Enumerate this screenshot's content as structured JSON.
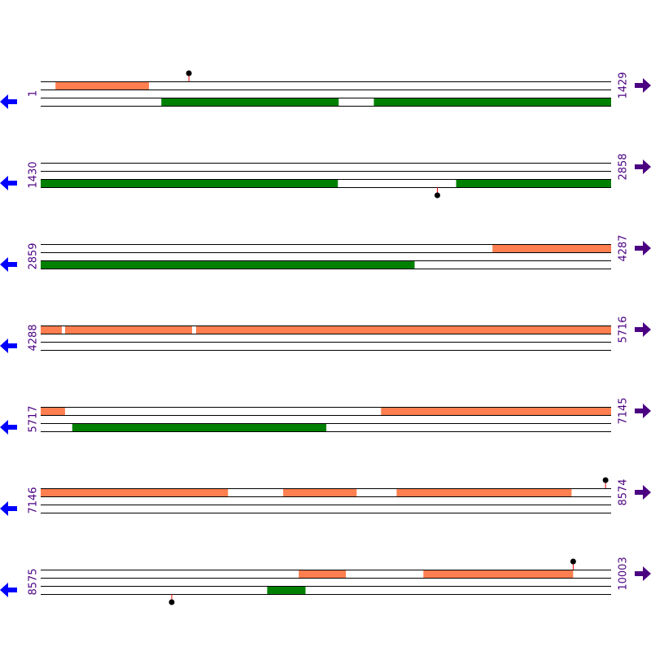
{
  "colors": {
    "top": "#ff7f50",
    "bottom": "#008000"
  },
  "rows": [
    {
      "start": 1,
      "end": 1429,
      "features": [
        {
          "track": "top",
          "start": 38,
          "end": 272
        },
        {
          "track": "bottom",
          "start": 303,
          "end": 747
        },
        {
          "track": "bottom",
          "start": 835,
          "end": 1429
        }
      ],
      "markers": [
        {
          "position": 372,
          "side": "up"
        }
      ]
    },
    {
      "start": 1430,
      "end": 2858,
      "features": [
        {
          "track": "bottom",
          "start": 1430,
          "end": 2174
        },
        {
          "track": "bottom",
          "start": 2470,
          "end": 2858
        }
      ],
      "markers": [
        {
          "position": 2423,
          "side": "down"
        }
      ]
    },
    {
      "start": 2859,
      "end": 4287,
      "features": [
        {
          "track": "top",
          "start": 3990,
          "end": 4287
        },
        {
          "track": "bottom",
          "start": 2859,
          "end": 3795
        }
      ],
      "markers": []
    },
    {
      "start": 4288,
      "end": 5716,
      "features": [
        {
          "track": "top",
          "start": 4288,
          "end": 4341
        },
        {
          "track": "top",
          "start": 4349,
          "end": 4667
        },
        {
          "track": "top",
          "start": 4677,
          "end": 5716
        }
      ],
      "markers": []
    },
    {
      "start": 5717,
      "end": 7145,
      "features": [
        {
          "track": "top",
          "start": 5717,
          "end": 5778
        },
        {
          "track": "top",
          "start": 6569,
          "end": 7145
        },
        {
          "track": "bottom",
          "start": 5796,
          "end": 6432
        }
      ],
      "markers": []
    },
    {
      "start": 7146,
      "end": 8574,
      "features": [
        {
          "track": "top",
          "start": 7146,
          "end": 7615
        },
        {
          "track": "top",
          "start": 7753,
          "end": 7937
        },
        {
          "track": "top",
          "start": 8037,
          "end": 8475
        }
      ],
      "markers": [
        {
          "position": 8560,
          "side": "up"
        }
      ]
    },
    {
      "start": 8575,
      "end": 10003,
      "features": [
        {
          "track": "top",
          "start": 9221,
          "end": 9339
        },
        {
          "track": "top",
          "start": 9533,
          "end": 9908
        },
        {
          "track": "bottom",
          "start": 9142,
          "end": 9238
        }
      ],
      "markers": [
        {
          "position": 9908,
          "side": "up"
        },
        {
          "position": 8903,
          "side": "down"
        }
      ]
    }
  ]
}
